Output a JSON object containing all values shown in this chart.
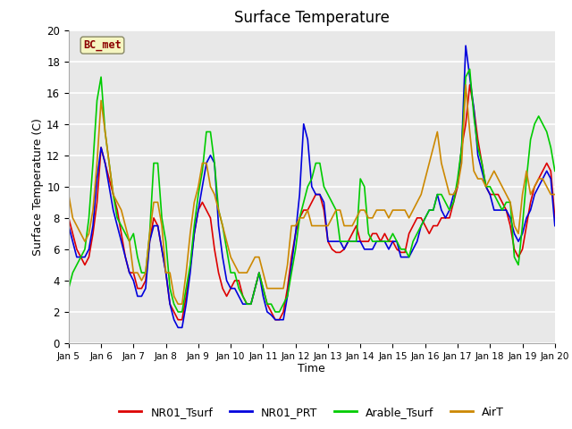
{
  "title": "Surface Temperature",
  "xlabel": "Time",
  "ylabel": "Surface Temperature (C)",
  "ylim": [
    0,
    20
  ],
  "xlim": [
    0,
    360
  ],
  "background_color": "#e8e8e8",
  "annotation_text": "BC_met",
  "annotation_bg": "#f5f5c0",
  "annotation_border": "#8B0000",
  "series": {
    "NR01_Tsurf": {
      "color": "#dd0000",
      "linewidth": 1.2
    },
    "NR01_PRT": {
      "color": "#0000dd",
      "linewidth": 1.2
    },
    "Arable_Tsurf": {
      "color": "#00cc00",
      "linewidth": 1.2
    },
    "AirT": {
      "color": "#cc8800",
      "linewidth": 1.2
    }
  },
  "xtick_positions": [
    0,
    24,
    48,
    72,
    96,
    120,
    144,
    168,
    192,
    216,
    240,
    264,
    288,
    312,
    336,
    360
  ],
  "xtick_labels": [
    "Jan 5",
    "Jan 6",
    "Jan 7",
    "Jan 8",
    "Jan 9",
    "Jan 10",
    "Jan 11",
    "Jan 12",
    "Jan 13",
    "Jan 14",
    "Jan 15",
    "Jan 16",
    "Jan 17",
    "Jan 18",
    "Jan 19",
    "Jan 20"
  ],
  "ytick_positions": [
    0,
    2,
    4,
    6,
    8,
    10,
    12,
    14,
    16,
    18,
    20
  ],
  "NR01_Tsurf_x": [
    0,
    3,
    6,
    9,
    12,
    15,
    18,
    21,
    24,
    27,
    30,
    33,
    36,
    39,
    42,
    45,
    48,
    51,
    54,
    57,
    60,
    63,
    66,
    69,
    72,
    75,
    78,
    81,
    84,
    87,
    90,
    93,
    96,
    99,
    102,
    105,
    108,
    111,
    114,
    117,
    120,
    123,
    126,
    129,
    132,
    135,
    138,
    141,
    144,
    147,
    150,
    153,
    156,
    159,
    162,
    165,
    168,
    171,
    174,
    177,
    180,
    183,
    186,
    189,
    192,
    195,
    198,
    201,
    204,
    207,
    210,
    213,
    216,
    219,
    222,
    225,
    228,
    231,
    234,
    237,
    240,
    243,
    246,
    249,
    252,
    255,
    258,
    261,
    264,
    267,
    270,
    273,
    276,
    279,
    282,
    285,
    288,
    291,
    294,
    297,
    300,
    303,
    306,
    309,
    312,
    315,
    318,
    321,
    324,
    327,
    330,
    333,
    336,
    339,
    342,
    345,
    348,
    351,
    354,
    357,
    360
  ],
  "NR01_Tsurf_y": [
    8.0,
    7.0,
    6.0,
    5.5,
    5.0,
    5.5,
    7.0,
    9.0,
    12.5,
    11.5,
    10.5,
    9.5,
    8.5,
    7.0,
    5.5,
    4.5,
    4.5,
    3.5,
    3.5,
    4.0,
    6.5,
    8.0,
    7.5,
    6.0,
    4.5,
    2.5,
    2.0,
    1.5,
    1.5,
    3.0,
    4.8,
    7.0,
    8.5,
    9.0,
    8.5,
    8.0,
    6.0,
    4.5,
    3.5,
    3.0,
    3.5,
    4.0,
    4.0,
    3.0,
    2.5,
    2.5,
    3.5,
    4.5,
    3.5,
    2.5,
    2.0,
    1.5,
    1.5,
    2.0,
    3.5,
    5.5,
    7.0,
    8.0,
    8.5,
    8.5,
    9.0,
    9.5,
    9.5,
    8.5,
    6.5,
    6.0,
    5.8,
    5.8,
    6.0,
    6.5,
    7.0,
    7.5,
    6.5,
    6.5,
    6.5,
    7.0,
    7.0,
    6.5,
    7.0,
    6.5,
    6.5,
    6.0,
    5.8,
    5.8,
    7.0,
    7.5,
    8.0,
    8.0,
    7.5,
    7.0,
    7.5,
    7.5,
    8.0,
    8.0,
    8.0,
    9.0,
    10.0,
    12.5,
    14.0,
    16.5,
    15.0,
    13.0,
    11.5,
    10.0,
    9.5,
    9.5,
    9.5,
    9.0,
    8.5,
    7.5,
    6.0,
    5.5,
    6.0,
    7.5,
    9.0,
    10.0,
    10.5,
    11.0,
    11.5,
    11.0,
    8.0
  ],
  "NR01_PRT_x": [
    0,
    3,
    6,
    9,
    12,
    15,
    18,
    21,
    24,
    27,
    30,
    33,
    36,
    39,
    42,
    45,
    48,
    51,
    54,
    57,
    60,
    63,
    66,
    69,
    72,
    75,
    78,
    81,
    84,
    87,
    90,
    93,
    96,
    99,
    102,
    105,
    108,
    111,
    114,
    117,
    120,
    123,
    126,
    129,
    132,
    135,
    138,
    141,
    144,
    147,
    150,
    153,
    156,
    159,
    162,
    165,
    168,
    171,
    174,
    177,
    180,
    183,
    186,
    189,
    192,
    195,
    198,
    201,
    204,
    207,
    210,
    213,
    216,
    219,
    222,
    225,
    228,
    231,
    234,
    237,
    240,
    243,
    246,
    249,
    252,
    255,
    258,
    261,
    264,
    267,
    270,
    273,
    276,
    279,
    282,
    285,
    288,
    291,
    294,
    297,
    300,
    303,
    306,
    309,
    312,
    315,
    318,
    321,
    324,
    327,
    330,
    333,
    336,
    339,
    342,
    345,
    348,
    351,
    354,
    357,
    360
  ],
  "NR01_PRT_y": [
    7.5,
    6.5,
    5.5,
    5.5,
    5.5,
    6.0,
    7.5,
    10.5,
    12.5,
    11.5,
    10.0,
    8.5,
    7.5,
    6.5,
    5.5,
    4.5,
    4.0,
    3.0,
    3.0,
    3.5,
    6.5,
    7.5,
    7.5,
    6.0,
    4.5,
    2.5,
    1.5,
    1.0,
    1.0,
    2.5,
    4.5,
    7.0,
    8.5,
    10.0,
    11.5,
    12.0,
    11.5,
    7.5,
    5.5,
    4.0,
    3.5,
    3.5,
    3.0,
    2.5,
    2.5,
    2.5,
    3.5,
    4.5,
    3.0,
    2.0,
    1.8,
    1.5,
    1.5,
    1.5,
    3.0,
    5.0,
    7.0,
    9.5,
    14.0,
    13.0,
    10.0,
    9.5,
    9.5,
    9.0,
    6.5,
    6.5,
    6.5,
    6.5,
    6.0,
    6.5,
    6.5,
    6.5,
    6.5,
    6.0,
    6.0,
    6.0,
    6.5,
    6.5,
    6.5,
    6.0,
    6.5,
    6.5,
    5.5,
    5.5,
    5.5,
    6.0,
    6.5,
    7.5,
    8.0,
    8.5,
    8.5,
    9.5,
    8.5,
    8.0,
    8.5,
    9.5,
    10.0,
    12.5,
    19.0,
    17.0,
    15.0,
    12.0,
    11.0,
    10.0,
    9.5,
    8.5,
    8.5,
    8.5,
    8.5,
    8.0,
    7.0,
    6.5,
    7.0,
    8.0,
    8.5,
    9.5,
    10.0,
    10.5,
    11.0,
    10.5,
    7.5
  ],
  "Arable_Tsurf_x": [
    0,
    3,
    6,
    9,
    12,
    15,
    18,
    21,
    24,
    27,
    30,
    33,
    36,
    39,
    42,
    45,
    48,
    51,
    54,
    57,
    60,
    63,
    66,
    69,
    72,
    75,
    78,
    81,
    84,
    87,
    90,
    93,
    96,
    99,
    102,
    105,
    108,
    111,
    114,
    117,
    120,
    123,
    126,
    129,
    132,
    135,
    138,
    141,
    144,
    147,
    150,
    153,
    156,
    159,
    162,
    165,
    168,
    171,
    174,
    177,
    180,
    183,
    186,
    189,
    192,
    195,
    198,
    201,
    204,
    207,
    210,
    213,
    216,
    219,
    222,
    225,
    228,
    231,
    234,
    237,
    240,
    243,
    246,
    249,
    252,
    255,
    258,
    261,
    264,
    267,
    270,
    273,
    276,
    279,
    282,
    285,
    288,
    291,
    294,
    297,
    300,
    303,
    306,
    309,
    312,
    315,
    318,
    321,
    324,
    327,
    330,
    333,
    336,
    339,
    342,
    345,
    348,
    351,
    354,
    357,
    360
  ],
  "Arable_Tsurf_y": [
    3.5,
    4.5,
    5.0,
    5.5,
    6.0,
    8.0,
    11.5,
    15.5,
    17.0,
    13.5,
    11.5,
    9.5,
    8.0,
    7.5,
    7.0,
    6.5,
    7.0,
    5.5,
    4.5,
    4.5,
    7.0,
    11.5,
    11.5,
    8.0,
    6.5,
    3.5,
    2.5,
    2.0,
    2.0,
    3.5,
    5.0,
    7.5,
    9.5,
    11.0,
    13.5,
    13.5,
    11.5,
    8.5,
    7.5,
    6.0,
    4.5,
    4.5,
    3.5,
    3.0,
    2.5,
    2.5,
    3.5,
    4.5,
    3.5,
    2.5,
    2.5,
    2.0,
    2.0,
    2.5,
    3.0,
    4.5,
    6.0,
    8.0,
    9.0,
    10.0,
    10.5,
    11.5,
    11.5,
    10.0,
    9.5,
    9.0,
    8.5,
    6.5,
    6.5,
    6.5,
    6.5,
    6.5,
    10.5,
    10.0,
    7.0,
    6.5,
    6.5,
    6.5,
    6.5,
    6.5,
    7.0,
    6.5,
    6.0,
    6.0,
    5.5,
    6.5,
    7.0,
    7.5,
    8.0,
    8.5,
    8.5,
    9.5,
    9.5,
    9.0,
    8.5,
    9.0,
    10.5,
    12.5,
    17.0,
    17.5,
    14.5,
    12.5,
    11.5,
    10.0,
    10.0,
    9.5,
    9.0,
    8.5,
    9.0,
    9.0,
    5.5,
    5.0,
    7.5,
    10.5,
    13.0,
    14.0,
    14.5,
    14.0,
    13.5,
    12.5,
    11.0
  ],
  "AirT_x": [
    0,
    3,
    6,
    9,
    12,
    15,
    18,
    21,
    24,
    27,
    30,
    33,
    36,
    39,
    42,
    45,
    48,
    51,
    54,
    57,
    60,
    63,
    66,
    69,
    72,
    75,
    78,
    81,
    84,
    87,
    90,
    93,
    96,
    99,
    102,
    105,
    108,
    111,
    114,
    117,
    120,
    123,
    126,
    129,
    132,
    135,
    138,
    141,
    144,
    147,
    150,
    153,
    156,
    159,
    162,
    165,
    168,
    171,
    174,
    177,
    180,
    183,
    186,
    189,
    192,
    195,
    198,
    201,
    204,
    207,
    210,
    213,
    216,
    219,
    222,
    225,
    228,
    231,
    234,
    237,
    240,
    243,
    246,
    249,
    252,
    255,
    258,
    261,
    264,
    267,
    270,
    273,
    276,
    279,
    282,
    285,
    288,
    291,
    294,
    297,
    300,
    303,
    306,
    309,
    312,
    315,
    318,
    321,
    324,
    327,
    330,
    333,
    336,
    339,
    342,
    345,
    348,
    351,
    354,
    357,
    360
  ],
  "AirT_y": [
    9.5,
    8.0,
    7.5,
    7.0,
    6.5,
    7.0,
    8.5,
    11.5,
    15.5,
    13.5,
    11.5,
    9.5,
    9.0,
    8.5,
    7.5,
    6.5,
    4.5,
    4.5,
    4.0,
    4.5,
    7.0,
    9.0,
    9.0,
    7.5,
    4.5,
    4.5,
    3.0,
    2.5,
    2.5,
    4.5,
    7.0,
    9.0,
    10.0,
    11.5,
    11.5,
    10.0,
    9.5,
    8.5,
    7.5,
    6.5,
    5.5,
    5.0,
    4.5,
    4.5,
    4.5,
    5.0,
    5.5,
    5.5,
    4.5,
    3.5,
    3.5,
    3.5,
    3.5,
    3.5,
    5.0,
    7.5,
    7.5,
    8.0,
    8.0,
    8.5,
    7.5,
    7.5,
    7.5,
    7.5,
    7.5,
    8.0,
    8.5,
    8.5,
    7.5,
    7.5,
    7.5,
    8.0,
    8.5,
    8.5,
    8.0,
    8.0,
    8.5,
    8.5,
    8.5,
    8.0,
    8.5,
    8.5,
    8.5,
    8.5,
    8.0,
    8.5,
    9.0,
    9.5,
    10.5,
    11.5,
    12.5,
    13.5,
    11.5,
    10.5,
    9.5,
    9.5,
    10.0,
    11.5,
    16.5,
    13.5,
    11.0,
    10.5,
    10.5,
    10.0,
    10.5,
    11.0,
    10.5,
    10.0,
    9.5,
    9.0,
    7.5,
    7.0,
    9.5,
    11.0,
    9.5,
    10.0,
    10.5,
    10.5,
    10.0,
    9.5,
    9.5
  ]
}
